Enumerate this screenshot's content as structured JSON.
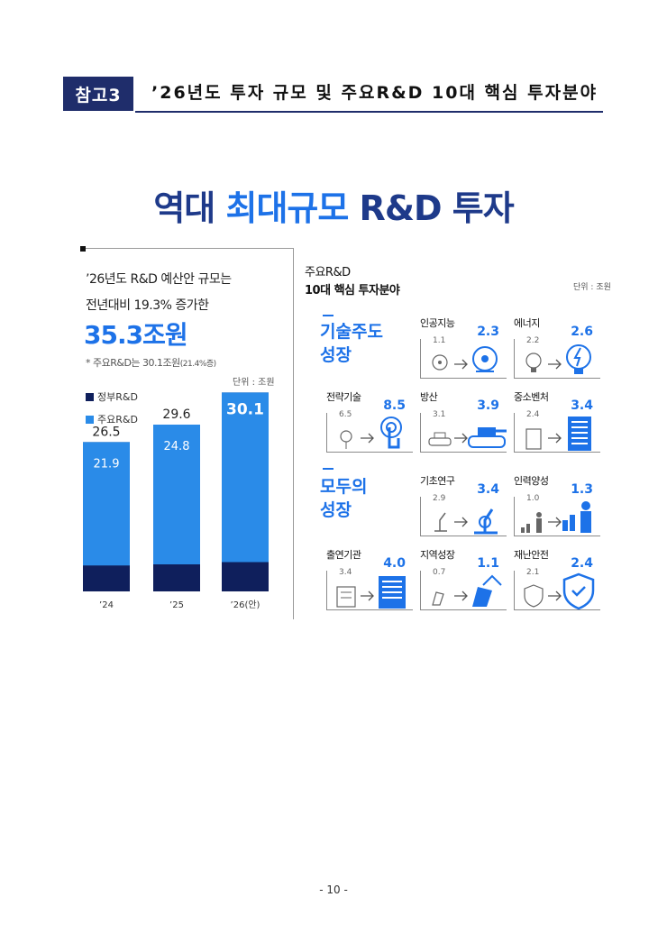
{
  "header": {
    "badge": "참고3",
    "title": "’26년도 투자 규모 및 주요R&D 10대 핵심 투자분야"
  },
  "headline": {
    "part1": "역대 ",
    "accent": "최대규모",
    "part2": " R&D 투자"
  },
  "left_panel": {
    "intro_line1": "’26년도 R&D 예산안 규모는",
    "intro_line2": "전년대비 19.3% 증가한",
    "big_value": "35.3조원",
    "note_main": "* 주요R&D는 30.1조원",
    "note_small": "(21.4%증)",
    "unit": "단위 : 조원"
  },
  "right_panel": {
    "title_line1": "주요R&D",
    "title_line2": "10대 핵심 투자분야",
    "unit": "단위 : 조원",
    "group1_line1": "기술주도",
    "group1_line2": "성장",
    "group2_line1": "모두의",
    "group2_line2": "성장",
    "cards": [
      {
        "name": "인공지능",
        "prev": "1.1",
        "curr": "2.3",
        "icon": "ai-head-icon"
      },
      {
        "name": "에너지",
        "prev": "2.2",
        "curr": "2.6",
        "icon": "lightbulb-bolt-icon"
      },
      {
        "name": "전략기술",
        "prev": "6.5",
        "curr": "8.5",
        "icon": "touch-circuit-icon"
      },
      {
        "name": "방산",
        "prev": "3.1",
        "curr": "3.9",
        "icon": "tank-icon"
      },
      {
        "name": "중소벤처",
        "prev": "2.4",
        "curr": "3.4",
        "icon": "office-building-icon"
      },
      {
        "name": "기초연구",
        "prev": "2.9",
        "curr": "3.4",
        "icon": "microscope-icon"
      },
      {
        "name": "인력양성",
        "prev": "1.0",
        "curr": "1.3",
        "icon": "person-growth-icon"
      },
      {
        "name": "출연기관",
        "prev": "3.4",
        "curr": "4.0",
        "icon": "institute-building-icon"
      },
      {
        "name": "지역성장",
        "prev": "0.7",
        "curr": "1.1",
        "icon": "region-growth-icon"
      },
      {
        "name": "재난안전",
        "prev": "2.1",
        "curr": "2.4",
        "icon": "shield-check-icon"
      }
    ]
  },
  "chart_data": [
    {
      "type": "bar",
      "categories": [
        "’24",
        "’25",
        "’26(안)"
      ],
      "series": [
        {
          "name": "정부R&D",
          "values": [
            26.5,
            29.6,
            35.3
          ]
        },
        {
          "name": "주요R&D",
          "values": [
            21.9,
            24.8,
            30.1
          ]
        }
      ],
      "legend": [
        "정부R&D",
        "주요R&D"
      ],
      "ylabel": "단위 : 조원",
      "ylim": [
        0,
        37
      ],
      "grid": false,
      "legend_position": "top-left"
    },
    {
      "type": "bar",
      "categories": [
        "인공지능",
        "에너지",
        "전략기술",
        "방산",
        "중소벤처",
        "기초연구",
        "인력양성",
        "출연기관",
        "지역성장",
        "재난안전"
      ],
      "series": [
        {
          "values": [
            1.1,
            2.2,
            6.5,
            3.1,
            2.4,
            2.9,
            1.0,
            3.4,
            0.7,
            2.1
          ]
        },
        {
          "values": [
            2.3,
            2.6,
            8.5,
            3.9,
            3.4,
            3.4,
            1.3,
            4.0,
            1.1,
            2.4
          ]
        }
      ],
      "unit": "단위 : 조원"
    }
  ],
  "footer": {
    "page": "- 10 -"
  },
  "colors": {
    "navy": "#1f2d6b",
    "dark_bar": "#0f1f5c",
    "blue": "#1d72e8",
    "bar_blue": "#2a8be8"
  }
}
